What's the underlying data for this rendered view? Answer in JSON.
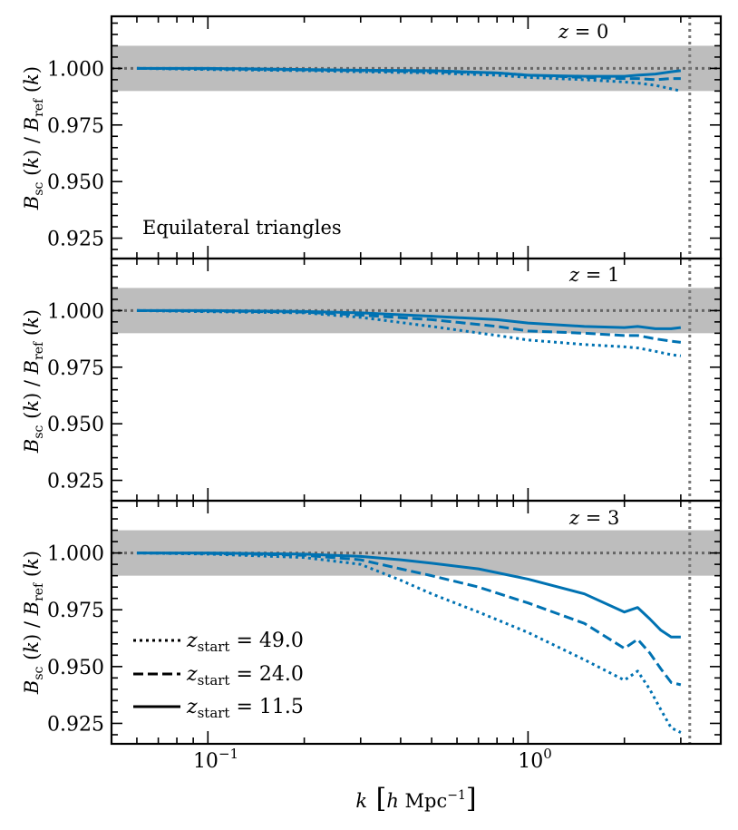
{
  "chart_data": [
    {
      "type": "line",
      "panel_label": "z = 0",
      "annotation": "Equilateral triangles",
      "ylabel": "B_sc(k) / B_ref(k)",
      "xlabel": "",
      "xscale": "log",
      "xlim": [
        0.05,
        4.0
      ],
      "ylim": [
        0.916,
        1.023
      ],
      "yticks": [
        "0.925",
        "0.950",
        "0.975",
        "1.000"
      ],
      "band": [
        0.99,
        1.01
      ],
      "reference_hline": 1.0,
      "reference_vline": 3.2,
      "color": "#0072B2",
      "x": [
        0.06,
        0.1,
        0.2,
        0.3,
        0.5,
        0.8,
        1.0,
        1.5,
        2.0,
        2.2,
        2.5,
        2.8,
        3.0
      ],
      "series": [
        {
          "name": "z_start = 49.0",
          "linestyle": "dotted",
          "values": [
            1.0,
            0.9995,
            0.999,
            0.9985,
            0.998,
            0.997,
            0.996,
            0.995,
            0.994,
            0.9935,
            0.9925,
            0.991,
            0.99
          ]
        },
        {
          "name": "z_start = 24.0",
          "linestyle": "dashed",
          "values": [
            1.0,
            0.9998,
            0.9993,
            0.999,
            0.9985,
            0.998,
            0.997,
            0.996,
            0.9955,
            0.9955,
            0.995,
            0.9955,
            0.9955
          ]
        },
        {
          "name": "z_start = 11.5",
          "linestyle": "solid",
          "values": [
            1.0,
            1.0,
            0.9995,
            0.9992,
            0.999,
            0.998,
            0.997,
            0.9965,
            0.9965,
            0.997,
            0.9975,
            0.9985,
            0.999
          ]
        }
      ]
    },
    {
      "type": "line",
      "panel_label": "z = 1",
      "ylabel": "B_sc(k) / B_ref(k)",
      "xlabel": "",
      "xscale": "log",
      "xlim": [
        0.05,
        4.0
      ],
      "ylim": [
        0.916,
        1.023
      ],
      "yticks": [
        "0.925",
        "0.950",
        "0.975",
        "1.000"
      ],
      "band": [
        0.99,
        1.01
      ],
      "reference_hline": 1.0,
      "reference_vline": 3.2,
      "color": "#0072B2",
      "x": [
        0.06,
        0.1,
        0.2,
        0.3,
        0.5,
        0.8,
        1.0,
        1.5,
        2.0,
        2.2,
        2.5,
        2.8,
        3.0
      ],
      "series": [
        {
          "name": "z_start = 49.0",
          "linestyle": "dotted",
          "values": [
            1.0,
            0.9995,
            0.999,
            0.997,
            0.993,
            0.989,
            0.987,
            0.985,
            0.984,
            0.9835,
            0.982,
            0.9805,
            0.98
          ]
        },
        {
          "name": "z_start = 24.0",
          "linestyle": "dashed",
          "values": [
            1.0,
            0.9998,
            0.9993,
            0.998,
            0.996,
            0.993,
            0.991,
            0.99,
            0.989,
            0.989,
            0.9875,
            0.9865,
            0.986
          ]
        },
        {
          "name": "z_start = 11.5",
          "linestyle": "solid",
          "values": [
            1.0,
            1.0,
            0.9996,
            0.999,
            0.9975,
            0.996,
            0.9945,
            0.993,
            0.9925,
            0.993,
            0.992,
            0.992,
            0.9925
          ]
        }
      ]
    },
    {
      "type": "line",
      "panel_label": "z = 3",
      "ylabel": "B_sc(k) / B_ref(k)",
      "xlabel": "k [h Mpc^-1]",
      "xscale": "log",
      "xlim": [
        0.05,
        4.0
      ],
      "ylim": [
        0.916,
        1.023
      ],
      "yticks": [
        "0.925",
        "0.950",
        "0.975",
        "1.000"
      ],
      "xticks": [
        "10^-1",
        "10^0"
      ],
      "band": [
        0.99,
        1.01
      ],
      "reference_hline": 1.0,
      "reference_vline": 3.2,
      "color": "#0072B2",
      "x": [
        0.06,
        0.1,
        0.2,
        0.3,
        0.4,
        0.5,
        0.7,
        1.0,
        1.5,
        2.0,
        2.2,
        2.4,
        2.6,
        2.8,
        3.0
      ],
      "series": [
        {
          "name": "z_start = 49.0",
          "linestyle": "dotted",
          "values": [
            1.0,
            0.9995,
            0.998,
            0.995,
            0.988,
            0.982,
            0.974,
            0.965,
            0.953,
            0.944,
            0.948,
            0.94,
            0.931,
            0.923,
            0.921
          ]
        },
        {
          "name": "z_start = 24.0",
          "linestyle": "dashed",
          "values": [
            1.0,
            0.9998,
            0.999,
            0.997,
            0.993,
            0.99,
            0.985,
            0.978,
            0.969,
            0.958,
            0.962,
            0.956,
            0.949,
            0.943,
            0.942
          ]
        },
        {
          "name": "z_start = 11.5",
          "linestyle": "solid",
          "values": [
            1.0,
            1.0,
            0.9995,
            0.9985,
            0.997,
            0.9955,
            0.993,
            0.9885,
            0.982,
            0.974,
            0.976,
            0.971,
            0.966,
            0.963,
            0.963
          ]
        }
      ]
    }
  ],
  "legend": [
    {
      "name": "z_start = 49.0",
      "linestyle": "dotted"
    },
    {
      "name": "z_start = 24.0",
      "linestyle": "dashed"
    },
    {
      "name": "z_start = 11.5",
      "linestyle": "solid"
    }
  ]
}
